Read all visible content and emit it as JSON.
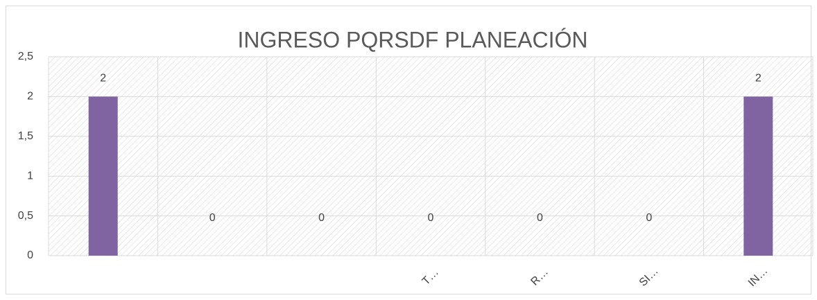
{
  "chart_data": {
    "type": "bar",
    "title": "INGRESO PQRSDF PLANEACIÓN",
    "categories": [
      null,
      null,
      null,
      "T…",
      "R…",
      "SI…",
      "IN…"
    ],
    "values": [
      2,
      0,
      0,
      0,
      0,
      0,
      2
    ],
    "color": "#8064a2",
    "ylim": [
      0,
      2.5
    ],
    "yticks": [
      0,
      {
        "value": 0.5,
        "label": "0,5"
      },
      1,
      {
        "value": 1.5,
        "label": "1,5"
      },
      2,
      {
        "value": 2.5,
        "label": "2,5"
      }
    ],
    "grid": true
  }
}
